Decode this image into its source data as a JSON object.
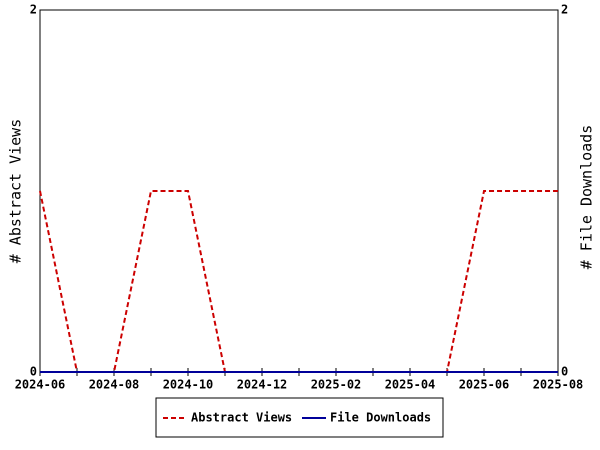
{
  "chart_data": {
    "type": "line",
    "categories": [
      "2024-06",
      null,
      "2024-08",
      null,
      "2024-10",
      null,
      "2024-12",
      null,
      "2025-02",
      null,
      "2025-04",
      null,
      "2025-06",
      null,
      "2025-08"
    ],
    "series": [
      {
        "name": "Abstract Views",
        "color": "#cc0000",
        "dashed": true,
        "values": [
          1,
          0,
          0,
          1,
          1,
          0,
          0,
          0,
          0,
          0,
          0,
          0,
          1,
          1,
          1
        ]
      },
      {
        "name": "File Downloads",
        "color": "#000099",
        "dashed": false,
        "axis": "y2",
        "values": [
          0,
          0,
          0,
          0,
          0,
          0,
          0,
          0,
          0,
          0,
          0,
          0,
          0,
          0,
          0
        ]
      }
    ],
    "ylabel": "# Abstract Views",
    "y2label": "# File Downloads",
    "ylim": [
      0,
      2
    ],
    "yticks": [
      0,
      2
    ],
    "y2lim": [
      0,
      2
    ],
    "y2ticks": [
      0,
      2
    ],
    "legend": "bottom"
  }
}
